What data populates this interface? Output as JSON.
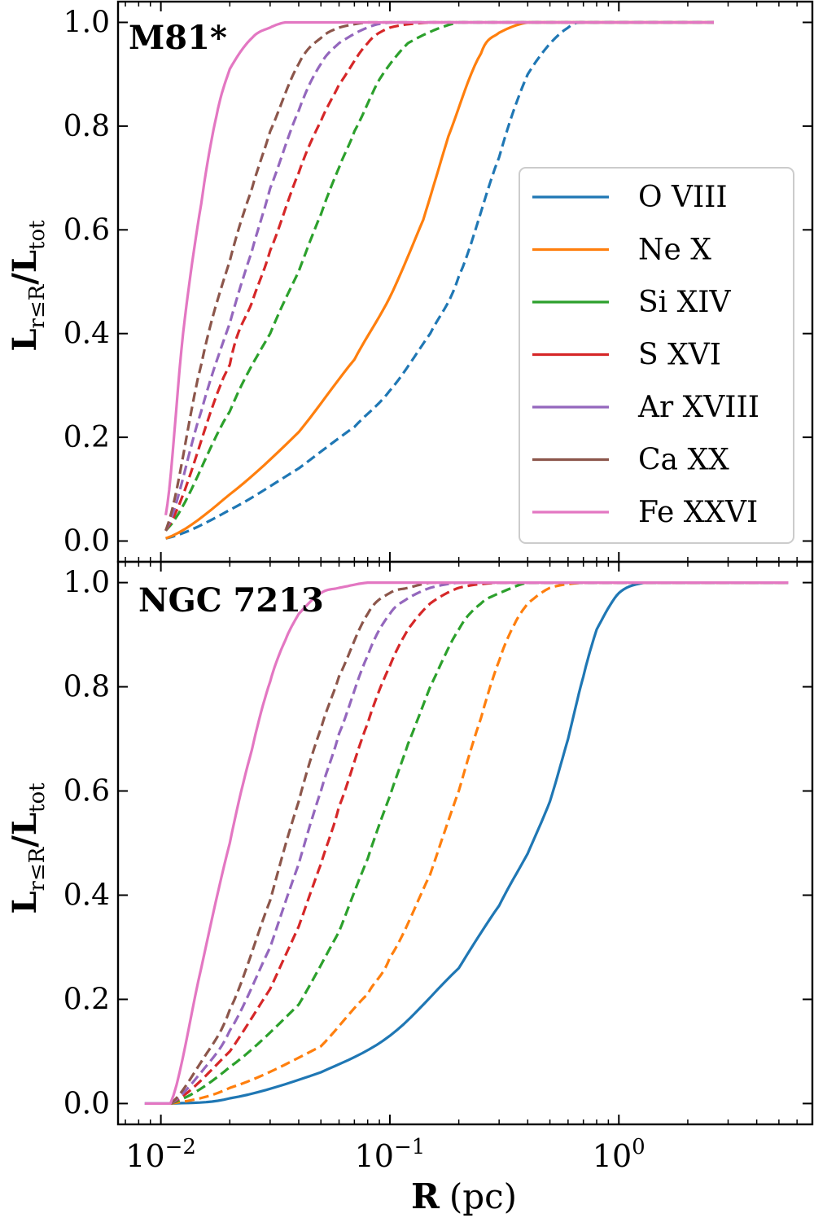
{
  "chart_data": [
    {
      "type": "line",
      "title": "M81*",
      "xlabel": "",
      "ylabel_main": "L",
      "ylabel_sub": "r≤R",
      "ylabel_slash": "/",
      "ylabel_den": "L",
      "ylabel_den_sub": "tot",
      "xscale": "log",
      "xlim": [
        0.0065,
        7.0
      ],
      "ylim": [
        -0.04,
        1.04
      ],
      "yticks": [
        0.0,
        0.2,
        0.4,
        0.6,
        0.8,
        1.0
      ],
      "ytick_labels": [
        "0.0",
        "0.2",
        "0.4",
        "0.6",
        "0.8",
        "1.0"
      ],
      "xticks": [
        0.01,
        0.1,
        1.0
      ],
      "legend": {
        "placement": "right",
        "show": true
      },
      "x_range": [
        0.0105,
        2.6
      ],
      "series": [
        {
          "name": "O VIII",
          "color": "#1f77b4",
          "dash": true,
          "x": [
            0.0105,
            0.02,
            0.04,
            0.07,
            0.1,
            0.15,
            0.2,
            0.3,
            0.4,
            0.6,
            0.8,
            1.0,
            2.6
          ],
          "y": [
            0.005,
            0.06,
            0.14,
            0.22,
            0.29,
            0.4,
            0.51,
            0.74,
            0.9,
            0.99,
            1.0,
            1.0,
            1.0
          ]
        },
        {
          "name": "Ne X",
          "color": "#ff7f0e",
          "dash": false,
          "x": [
            0.0105,
            0.02,
            0.04,
            0.07,
            0.1,
            0.14,
            0.18,
            0.25,
            0.3,
            0.4,
            0.6,
            2.6
          ],
          "y": [
            0.005,
            0.09,
            0.21,
            0.35,
            0.47,
            0.62,
            0.78,
            0.94,
            0.98,
            1.0,
            1.0,
            1.0
          ]
        },
        {
          "name": "Si XIV",
          "color": "#2ca02c",
          "dash": true,
          "x": [
            0.0105,
            0.02,
            0.03,
            0.04,
            0.05,
            0.06,
            0.07,
            0.09,
            0.12,
            0.2,
            0.3,
            2.6
          ],
          "y": [
            0.02,
            0.25,
            0.4,
            0.52,
            0.63,
            0.72,
            0.79,
            0.89,
            0.96,
            1.0,
            1.0,
            1.0
          ]
        },
        {
          "name": "S XVI",
          "color": "#d62728",
          "dash": true,
          "x": [
            0.0105,
            0.02,
            0.025,
            0.03,
            0.04,
            0.05,
            0.06,
            0.08,
            0.1,
            0.15,
            0.2,
            2.6
          ],
          "y": [
            0.02,
            0.34,
            0.46,
            0.56,
            0.71,
            0.81,
            0.88,
            0.96,
            0.99,
            1.0,
            1.0,
            1.0
          ]
        },
        {
          "name": "Ar XVIII",
          "color": "#9467bd",
          "dash": true,
          "x": [
            0.0105,
            0.015,
            0.02,
            0.025,
            0.03,
            0.04,
            0.05,
            0.06,
            0.08,
            0.1,
            0.15,
            2.6
          ],
          "y": [
            0.02,
            0.25,
            0.42,
            0.56,
            0.68,
            0.83,
            0.92,
            0.96,
            0.99,
            1.0,
            1.0,
            1.0
          ]
        },
        {
          "name": "Ca XX",
          "color": "#8c564b",
          "dash": true,
          "x": [
            0.0105,
            0.015,
            0.02,
            0.025,
            0.03,
            0.04,
            0.05,
            0.06,
            0.08,
            0.1,
            2.6
          ],
          "y": [
            0.02,
            0.34,
            0.54,
            0.68,
            0.79,
            0.92,
            0.97,
            0.99,
            1.0,
            1.0,
            1.0
          ]
        },
        {
          "name": "Fe XXVI",
          "color": "#e377c2",
          "dash": false,
          "x": [
            0.0105,
            0.0125,
            0.015,
            0.0175,
            0.02,
            0.025,
            0.03,
            0.035,
            0.04,
            0.05,
            2.6
          ],
          "y": [
            0.05,
            0.4,
            0.65,
            0.82,
            0.91,
            0.97,
            0.99,
            1.0,
            1.0,
            1.0,
            1.0
          ]
        }
      ]
    },
    {
      "type": "line",
      "title": "NGC 7213",
      "xlabel_main": "R",
      "xlabel_unit": "(pc)",
      "ylabel_main": "L",
      "ylabel_sub": "r≤R",
      "ylabel_slash": "/",
      "ylabel_den": "L",
      "ylabel_den_sub": "tot",
      "xscale": "log",
      "xlim": [
        0.0065,
        7.0
      ],
      "ylim": [
        -0.04,
        1.04
      ],
      "yticks": [
        0.0,
        0.2,
        0.4,
        0.6,
        0.8,
        1.0
      ],
      "ytick_labels": [
        "0.0",
        "0.2",
        "0.4",
        "0.6",
        "0.8",
        "1.0"
      ],
      "xticks": [
        0.01,
        0.1,
        1.0
      ],
      "xtick_labels": [
        {
          "base": "10",
          "exp": "−2"
        },
        {
          "base": "10",
          "exp": "−1"
        },
        {
          "base": "10",
          "exp": "0"
        }
      ],
      "x_range": [
        0.0085,
        5.5
      ],
      "series": [
        {
          "name": "O VIII",
          "color": "#1f77b4",
          "dash": false,
          "x": [
            0.0085,
            0.011,
            0.02,
            0.05,
            0.1,
            0.2,
            0.3,
            0.4,
            0.5,
            0.6,
            0.7,
            0.8,
            1.0,
            1.3,
            1.6,
            5.5
          ],
          "y": [
            0.0,
            0.0,
            0.01,
            0.06,
            0.13,
            0.26,
            0.38,
            0.48,
            0.58,
            0.7,
            0.82,
            0.91,
            0.98,
            1.0,
            1.0,
            1.0
          ]
        },
        {
          "name": "Ne X",
          "color": "#ff7f0e",
          "dash": true,
          "x": [
            0.011,
            0.02,
            0.05,
            0.08,
            0.1,
            0.15,
            0.2,
            0.25,
            0.3,
            0.35,
            0.4,
            0.5,
            0.7,
            5.5
          ],
          "y": [
            0.0,
            0.03,
            0.11,
            0.21,
            0.28,
            0.44,
            0.6,
            0.74,
            0.85,
            0.92,
            0.96,
            0.99,
            1.0,
            1.0
          ]
        },
        {
          "name": "Si XIV",
          "color": "#2ca02c",
          "dash": true,
          "x": [
            0.011,
            0.02,
            0.04,
            0.06,
            0.08,
            0.1,
            0.12,
            0.15,
            0.2,
            0.25,
            0.3,
            0.4,
            0.6,
            5.5
          ],
          "y": [
            0.0,
            0.07,
            0.19,
            0.33,
            0.47,
            0.59,
            0.69,
            0.8,
            0.91,
            0.96,
            0.98,
            1.0,
            1.0,
            1.0
          ]
        },
        {
          "name": "S XVI",
          "color": "#d62728",
          "dash": true,
          "x": [
            0.011,
            0.02,
            0.03,
            0.04,
            0.05,
            0.06,
            0.08,
            0.1,
            0.12,
            0.15,
            0.2,
            0.3,
            5.5
          ],
          "y": [
            0.0,
            0.1,
            0.22,
            0.34,
            0.46,
            0.57,
            0.73,
            0.84,
            0.91,
            0.96,
            0.99,
            1.0,
            1.0
          ]
        },
        {
          "name": "Ar XVIII",
          "color": "#9467bd",
          "dash": true,
          "x": [
            0.011,
            0.015,
            0.02,
            0.03,
            0.04,
            0.05,
            0.06,
            0.08,
            0.1,
            0.12,
            0.15,
            0.2,
            5.5
          ],
          "y": [
            0.0,
            0.06,
            0.14,
            0.3,
            0.46,
            0.6,
            0.71,
            0.86,
            0.94,
            0.97,
            0.99,
            1.0,
            1.0
          ]
        },
        {
          "name": "Ca XX",
          "color": "#8c564b",
          "dash": true,
          "x": [
            0.011,
            0.015,
            0.02,
            0.03,
            0.04,
            0.05,
            0.06,
            0.08,
            0.1,
            0.12,
            0.15,
            5.5
          ],
          "y": [
            0.0,
            0.08,
            0.18,
            0.39,
            0.58,
            0.72,
            0.82,
            0.94,
            0.98,
            0.99,
            1.0,
            1.0
          ]
        },
        {
          "name": "Fe XXVI",
          "color": "#e377c2",
          "dash": false,
          "x": [
            0.0085,
            0.011,
            0.015,
            0.02,
            0.025,
            0.03,
            0.035,
            0.04,
            0.05,
            0.06,
            0.08,
            0.1,
            5.5
          ],
          "y": [
            0.0,
            0.0,
            0.26,
            0.5,
            0.68,
            0.81,
            0.89,
            0.94,
            0.98,
            0.99,
            1.0,
            1.0,
            1.0
          ]
        }
      ]
    }
  ]
}
